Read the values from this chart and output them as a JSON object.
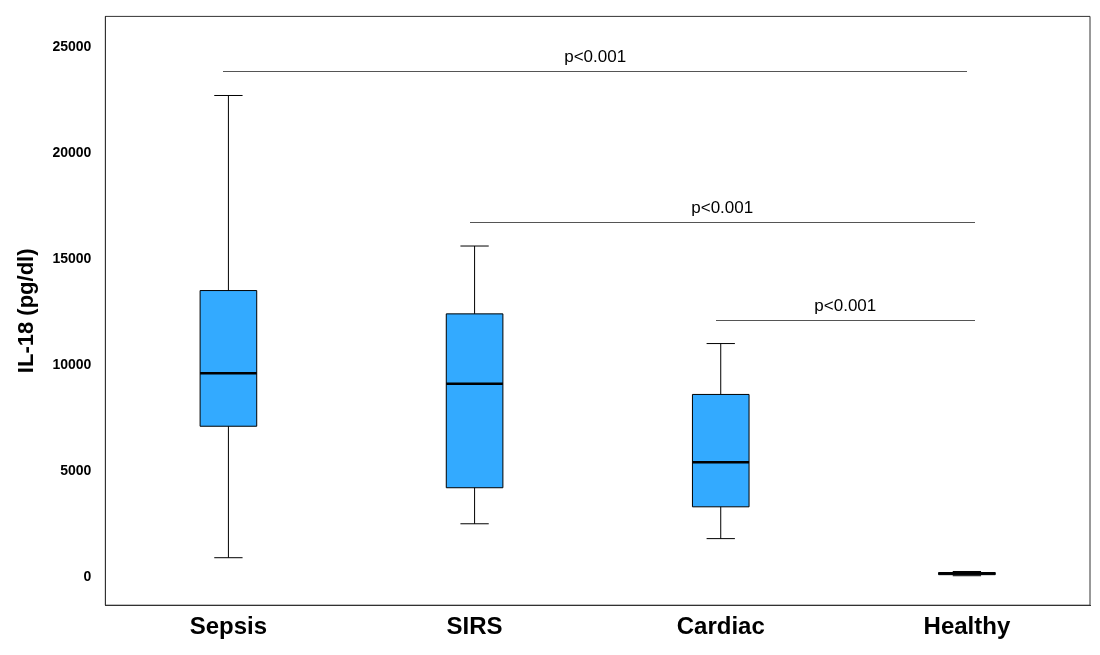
{
  "chart_data": {
    "type": "box",
    "ylabel": "IL-18 (pg/dl)",
    "categories": [
      "Sepsis",
      "SIRS",
      "Cardiac",
      "Healthy"
    ],
    "boxes": [
      {
        "low": 900,
        "q1": 7100,
        "median": 9600,
        "q3": 13500,
        "high": 22700
      },
      {
        "low": 2500,
        "q1": 4200,
        "median": 9100,
        "q3": 12400,
        "high": 15600
      },
      {
        "low": 1800,
        "q1": 3300,
        "median": 5400,
        "q3": 8600,
        "high": 11000
      },
      {
        "low": 50,
        "q1": 100,
        "median": 150,
        "q3": 200,
        "high": 250
      }
    ],
    "color": "#33aaff",
    "ylim": [
      -1340,
      26430
    ],
    "yticks": [
      0,
      5000,
      10000,
      15000,
      20000,
      25000
    ],
    "annotations": [
      "p<0.001",
      "p<0.001",
      "p<0.001"
    ]
  }
}
